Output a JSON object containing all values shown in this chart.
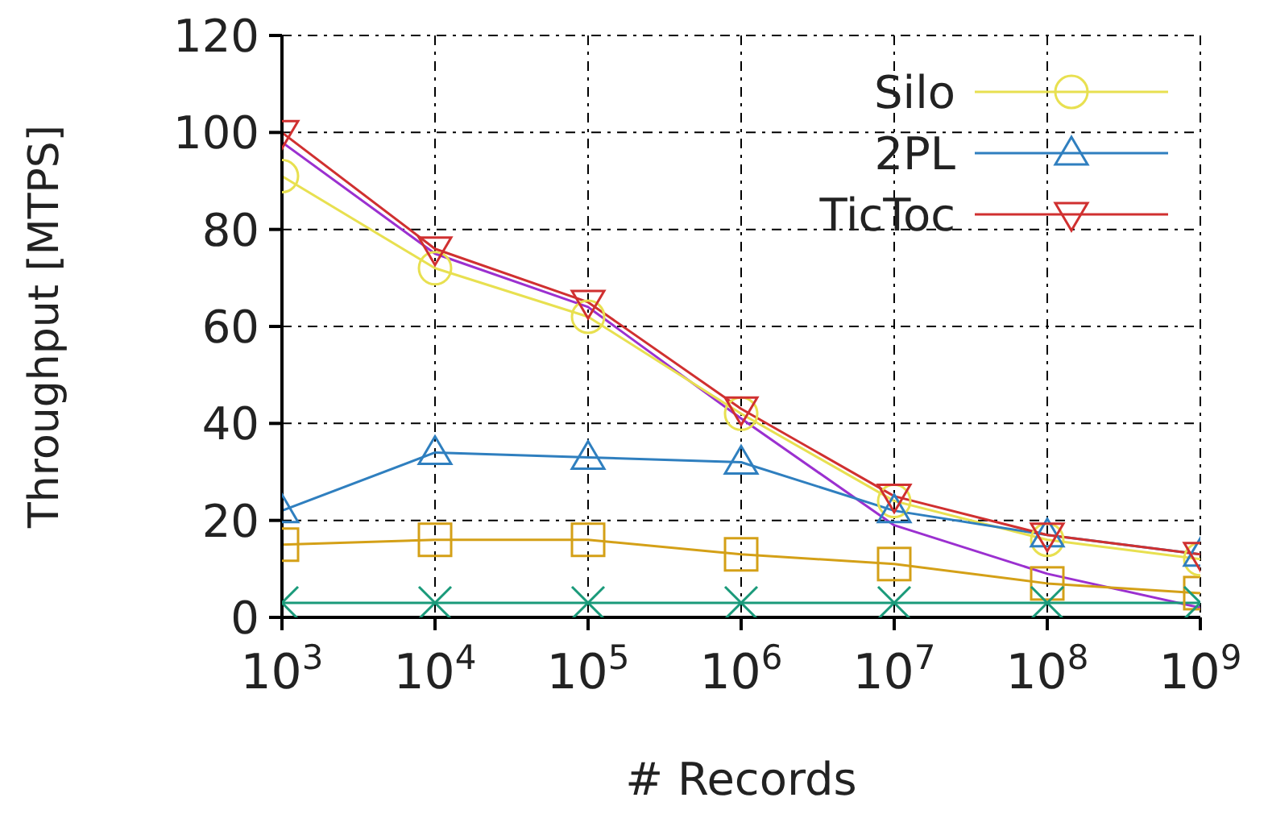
{
  "chart_data": {
    "type": "line",
    "xlabel": "# Records",
    "ylabel": "Throughput [MTPS]",
    "x": [
      1000,
      10000,
      100000,
      1000000,
      10000000,
      100000000,
      1000000000
    ],
    "log": "x",
    "xlim": [
      1000,
      1000000000
    ],
    "xticks": [
      {
        "value": 1000,
        "label": "10$^{3}$"
      },
      {
        "value": 10000,
        "label": "10$^{4}$"
      },
      {
        "value": 100000,
        "label": "10$^{5}$"
      },
      {
        "value": 1000000,
        "label": "10$^{6}$"
      },
      {
        "value": 10000000,
        "label": "10$^{7}$"
      },
      {
        "value": 100000000,
        "label": "10$^{8}$"
      },
      {
        "value": 1000000000,
        "label": "10$^{9}$"
      }
    ],
    "ylim": [
      0,
      120
    ],
    "yticks": [
      0,
      20,
      40,
      60,
      80,
      100,
      120
    ],
    "grid": true,
    "legend": "top right",
    "line_style": "solid",
    "series": [
      {
        "color": "#9b30d0",
        "marker": "none",
        "values": [
          98,
          75,
          64,
          41,
          19,
          9,
          2
        ]
      },
      {
        "color": "#d4a017",
        "marker": "square",
        "values": [
          15,
          16,
          16,
          13,
          11,
          7,
          5
        ]
      },
      {
        "color": "#1a9a7a",
        "marker": "cross",
        "values": [
          3,
          3,
          3,
          3,
          3,
          3,
          3
        ]
      },
      {
        "name": "Silo",
        "color": "#e8e050",
        "marker": "circle",
        "values": [
          91,
          72,
          62,
          42,
          24,
          16,
          12
        ]
      },
      {
        "name": "2PL",
        "color": "#2f7fbf",
        "marker": "triangle",
        "values": [
          22,
          34,
          33,
          32,
          22,
          17,
          13
        ]
      },
      {
        "name": "TicToc",
        "color": "#d03030",
        "marker": "triangle-down",
        "values": [
          100,
          76,
          65,
          43,
          25,
          17,
          13
        ]
      }
    ]
  }
}
